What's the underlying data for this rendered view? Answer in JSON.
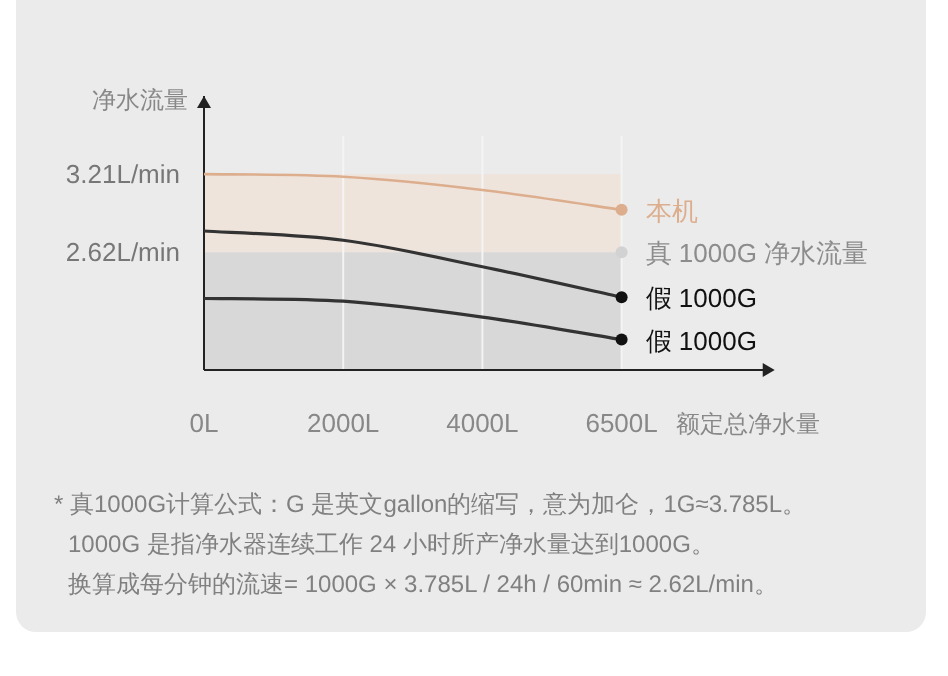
{
  "chart_data": {
    "type": "line",
    "ylabel": "净水流量",
    "xlabel": "额定总净水量",
    "categories": [
      "0L",
      "2000L",
      "4000L",
      "6500L"
    ],
    "ylim": [
      1.73,
      3.8
    ],
    "yticks": [
      {
        "value": 3.21,
        "label": "3.21L/min"
      },
      {
        "value": 2.62,
        "label": "2.62L/min"
      }
    ],
    "grid": "x",
    "bands": [
      {
        "axis": "y",
        "from": 1.73,
        "to": 2.62,
        "color": "#d8d8d8"
      },
      {
        "axis": "y",
        "from": 2.62,
        "to": 3.21,
        "color": "#efe4dc"
      }
    ],
    "series": [
      {
        "name": "本机",
        "color": "#dcae8e",
        "values": [
          3.21,
          3.19,
          3.09,
          2.94
        ]
      },
      {
        "name": "真 1000G 净水流量",
        "type": "scatter",
        "color": "#d2d2d2",
        "values": [
          null,
          null,
          null,
          2.62
        ]
      },
      {
        "name": "假 1000G",
        "color": "#333333",
        "values": [
          2.78,
          2.71,
          2.51,
          2.28
        ]
      },
      {
        "name": "假 1000G",
        "color": "#333333",
        "values": [
          2.27,
          2.25,
          2.13,
          1.96
        ]
      },
      {
        "type": "scatter",
        "x": [
          "6500L",
          "6500L",
          "6500L"
        ],
        "colors": [
          "#dcae8e",
          "#111111",
          "#111111"
        ],
        "values": [
          2.94,
          2.28,
          1.96
        ]
      }
    ],
    "annotations": [
      "* 真1000G计算公式：G 是英文gallon的缩写，意为加仑，1G≈3.785L。",
      "1000G 是指净水器连续工作 24 小时所产净水量达到1000G。",
      "换算成每分钟的流速= 1000G × 3.785L / 24h / 60min ≈ 2.62L/min。"
    ]
  }
}
